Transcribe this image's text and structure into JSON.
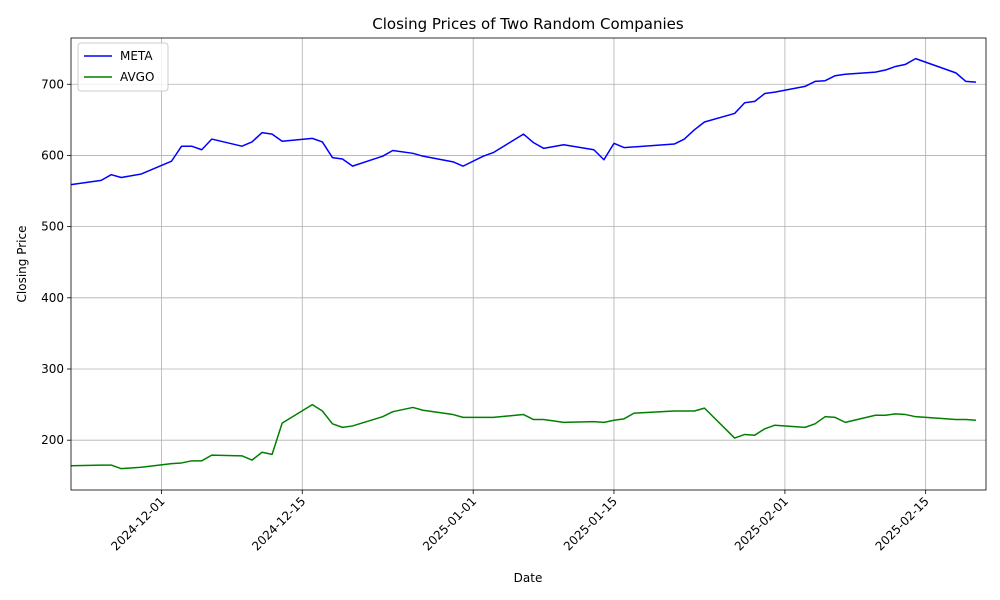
{
  "chart_data": {
    "type": "line",
    "title": "Closing Prices of Two Random Companies",
    "xlabel": "Date",
    "ylabel": "Closing Price",
    "xlim": [
      "2024-11-22",
      "2025-02-21"
    ],
    "ylim": [
      130,
      765
    ],
    "grid": true,
    "legend_position": "upper-left",
    "xticks": [
      "2024-12-01",
      "2024-12-15",
      "2025-01-01",
      "2025-01-15",
      "2025-02-01",
      "2025-02-15"
    ],
    "yticks": [
      200,
      300,
      400,
      500,
      600,
      700
    ],
    "series": [
      {
        "name": "META",
        "color": "#0000ff",
        "points": [
          [
            "2024-11-22",
            559
          ],
          [
            "2024-11-25",
            565
          ],
          [
            "2024-11-26",
            573
          ],
          [
            "2024-11-27",
            569
          ],
          [
            "2024-11-29",
            574
          ],
          [
            "2024-12-02",
            592
          ],
          [
            "2024-12-03",
            613
          ],
          [
            "2024-12-04",
            613
          ],
          [
            "2024-12-05",
            608
          ],
          [
            "2024-12-06",
            623
          ],
          [
            "2024-12-09",
            613
          ],
          [
            "2024-12-10",
            619
          ],
          [
            "2024-12-11",
            632
          ],
          [
            "2024-12-12",
            630
          ],
          [
            "2024-12-13",
            620
          ],
          [
            "2024-12-16",
            624
          ],
          [
            "2024-12-17",
            619
          ],
          [
            "2024-12-18",
            597
          ],
          [
            "2024-12-19",
            595
          ],
          [
            "2024-12-20",
            585
          ],
          [
            "2024-12-23",
            599
          ],
          [
            "2024-12-24",
            607
          ],
          [
            "2024-12-26",
            603
          ],
          [
            "2024-12-27",
            599
          ],
          [
            "2024-12-30",
            591
          ],
          [
            "2024-12-31",
            585
          ],
          [
            "2025-01-02",
            599
          ],
          [
            "2025-01-03",
            604
          ],
          [
            "2025-01-06",
            630
          ],
          [
            "2025-01-07",
            618
          ],
          [
            "2025-01-08",
            610
          ],
          [
            "2025-01-10",
            615
          ],
          [
            "2025-01-13",
            608
          ],
          [
            "2025-01-14",
            594
          ],
          [
            "2025-01-15",
            617
          ],
          [
            "2025-01-16",
            611
          ],
          [
            "2025-01-17",
            612
          ],
          [
            "2025-01-21",
            616
          ],
          [
            "2025-01-22",
            623
          ],
          [
            "2025-01-23",
            636
          ],
          [
            "2025-01-24",
            647
          ],
          [
            "2025-01-27",
            659
          ],
          [
            "2025-01-28",
            674
          ],
          [
            "2025-01-29",
            676
          ],
          [
            "2025-01-30",
            687
          ],
          [
            "2025-01-31",
            689
          ],
          [
            "2025-02-03",
            697
          ],
          [
            "2025-02-04",
            704
          ],
          [
            "2025-02-05",
            705
          ],
          [
            "2025-02-06",
            712
          ],
          [
            "2025-02-07",
            714
          ],
          [
            "2025-02-10",
            717
          ],
          [
            "2025-02-11",
            720
          ],
          [
            "2025-02-12",
            725
          ],
          [
            "2025-02-13",
            728
          ],
          [
            "2025-02-14",
            736
          ],
          [
            "2025-02-18",
            716
          ],
          [
            "2025-02-19",
            704
          ],
          [
            "2025-02-20",
            703
          ]
        ]
      },
      {
        "name": "AVGO",
        "color": "#008000",
        "points": [
          [
            "2024-11-22",
            164
          ],
          [
            "2024-11-25",
            165
          ],
          [
            "2024-11-26",
            165
          ],
          [
            "2024-11-27",
            160
          ],
          [
            "2024-11-29",
            162
          ],
          [
            "2024-12-02",
            167
          ],
          [
            "2024-12-03",
            168
          ],
          [
            "2024-12-04",
            171
          ],
          [
            "2024-12-05",
            171
          ],
          [
            "2024-12-06",
            179
          ],
          [
            "2024-12-09",
            178
          ],
          [
            "2024-12-10",
            172
          ],
          [
            "2024-12-11",
            183
          ],
          [
            "2024-12-12",
            180
          ],
          [
            "2024-12-13",
            224
          ],
          [
            "2024-12-16",
            250
          ],
          [
            "2024-12-17",
            241
          ],
          [
            "2024-12-18",
            223
          ],
          [
            "2024-12-19",
            218
          ],
          [
            "2024-12-20",
            220
          ],
          [
            "2024-12-23",
            233
          ],
          [
            "2024-12-24",
            240
          ],
          [
            "2024-12-26",
            246
          ],
          [
            "2024-12-27",
            242
          ],
          [
            "2024-12-30",
            236
          ],
          [
            "2024-12-31",
            232
          ],
          [
            "2025-01-02",
            232
          ],
          [
            "2025-01-03",
            232
          ],
          [
            "2025-01-06",
            236
          ],
          [
            "2025-01-07",
            229
          ],
          [
            "2025-01-08",
            229
          ],
          [
            "2025-01-10",
            225
          ],
          [
            "2025-01-13",
            226
          ],
          [
            "2025-01-14",
            225
          ],
          [
            "2025-01-15",
            228
          ],
          [
            "2025-01-16",
            230
          ],
          [
            "2025-01-17",
            238
          ],
          [
            "2025-01-21",
            241
          ],
          [
            "2025-01-22",
            241
          ],
          [
            "2025-01-23",
            241
          ],
          [
            "2025-01-24",
            245
          ],
          [
            "2025-01-27",
            203
          ],
          [
            "2025-01-28",
            208
          ],
          [
            "2025-01-29",
            207
          ],
          [
            "2025-01-30",
            216
          ],
          [
            "2025-01-31",
            221
          ],
          [
            "2025-02-03",
            218
          ],
          [
            "2025-02-04",
            223
          ],
          [
            "2025-02-05",
            233
          ],
          [
            "2025-02-06",
            232
          ],
          [
            "2025-02-07",
            225
          ],
          [
            "2025-02-10",
            235
          ],
          [
            "2025-02-11",
            235
          ],
          [
            "2025-02-12",
            237
          ],
          [
            "2025-02-13",
            236
          ],
          [
            "2025-02-14",
            233
          ],
          [
            "2025-02-18",
            229
          ],
          [
            "2025-02-19",
            229
          ],
          [
            "2025-02-20",
            228
          ]
        ]
      }
    ]
  }
}
